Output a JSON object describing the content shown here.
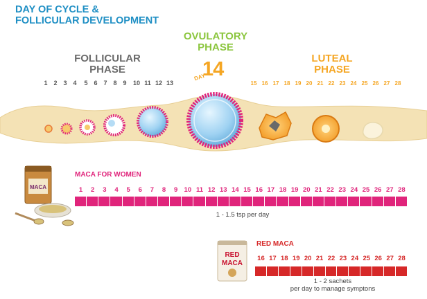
{
  "title": {
    "line1": "DAY OF CYCLE &",
    "line2": "FOLLICULAR DEVELOPMENT"
  },
  "phases": {
    "follicular": {
      "line1": "FOLLICULAR",
      "line2": "PHASE"
    },
    "ovulatory": {
      "line1": "OVULATORY",
      "line2": "PHASE",
      "day_label": "DAY",
      "day_number": "14"
    },
    "luteal": {
      "line1": "LUTEAL",
      "line2": "PHASE"
    }
  },
  "follicular_days": [
    "1",
    "2",
    "3",
    "4",
    "5",
    "6",
    "7",
    "8",
    "9",
    "10",
    "11",
    "12",
    "13"
  ],
  "luteal_days": [
    "15",
    "16",
    "17",
    "18",
    "19",
    "20",
    "21",
    "22",
    "23",
    "24",
    "25",
    "26",
    "27",
    "28"
  ],
  "products": {
    "maca_women": {
      "name": "MACA FOR WOMEN",
      "days": [
        "1",
        "2",
        "3",
        "4",
        "5",
        "6",
        "7",
        "8",
        "9",
        "10",
        "11",
        "12",
        "13",
        "14",
        "15",
        "16",
        "17",
        "18",
        "19",
        "20",
        "21",
        "22",
        "23",
        "24",
        "25",
        "26",
        "27",
        "28"
      ],
      "dose": "1 - 1.5 tsp per day",
      "package_text": "MACA",
      "color": "#e0247b"
    },
    "red_maca": {
      "name": "RED MACA",
      "days": [
        "16",
        "17",
        "18",
        "19",
        "20",
        "21",
        "22",
        "23",
        "24",
        "25",
        "26",
        "27",
        "28"
      ],
      "dose_line1": "1 - 2 sachets",
      "dose_line2": "per day to manage symptons",
      "package_text_1": "RED",
      "package_text_2": "MACA",
      "color": "#d62828"
    }
  }
}
